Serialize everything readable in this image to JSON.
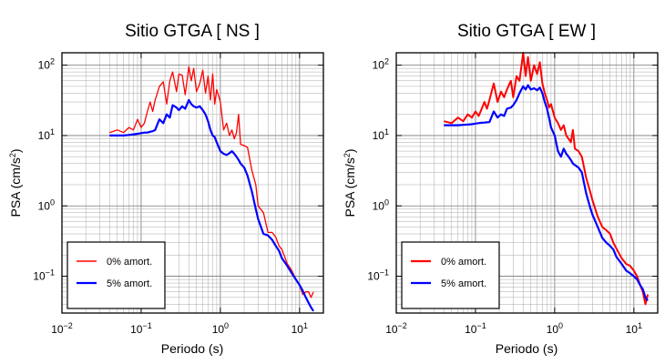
{
  "chart_data": [
    {
      "type": "line",
      "title": "Sitio GTGA [ NS ]",
      "xlabel": "Periodo (s)",
      "ylabel_main": "PSA (cm/s",
      "ylabel_sup": "2",
      "ylabel_tail": ")",
      "xscale": "log",
      "yscale": "log",
      "xlim": [
        0.01,
        20
      ],
      "ylim": [
        0.03,
        150
      ],
      "grid": true,
      "legend_placement": "bottom-left",
      "x_tick_labels": [
        {
          "value": 0.01,
          "base": "10",
          "exp": "−2"
        },
        {
          "value": 0.1,
          "base": "10",
          "exp": "−1"
        },
        {
          "value": 1,
          "base": "10",
          "exp": "0"
        },
        {
          "value": 10,
          "base": "10",
          "exp": "1"
        }
      ],
      "y_tick_labels": [
        {
          "value": 0.1,
          "base": "10",
          "exp": "−1"
        },
        {
          "value": 1,
          "base": "10",
          "exp": "0"
        },
        {
          "value": 10,
          "base": "10",
          "exp": "1"
        },
        {
          "value": 100,
          "base": "10",
          "exp": "2"
        }
      ],
      "series": [
        {
          "name": "0% amort.",
          "color": "#ff0000",
          "x": [
            0.04,
            0.05,
            0.06,
            0.07,
            0.08,
            0.09,
            0.1,
            0.11,
            0.12,
            0.13,
            0.14,
            0.15,
            0.17,
            0.19,
            0.21,
            0.23,
            0.25,
            0.28,
            0.3,
            0.33,
            0.36,
            0.4,
            0.43,
            0.46,
            0.5,
            0.55,
            0.6,
            0.65,
            0.7,
            0.75,
            0.8,
            0.85,
            0.9,
            1.0,
            1.1,
            1.2,
            1.3,
            1.4,
            1.5,
            1.6,
            1.7,
            1.8,
            2.0,
            2.2,
            2.5,
            2.8,
            3.0,
            3.5,
            4.0,
            4.5,
            5.0,
            5.5,
            6.0,
            7.0,
            8.0,
            9.0,
            10.0,
            11.0,
            12.0,
            13.0,
            14.0,
            15.0
          ],
          "y": [
            11,
            12,
            11,
            13,
            12,
            17,
            13,
            15,
            22,
            30,
            22,
            32,
            50,
            58,
            28,
            60,
            80,
            42,
            75,
            72,
            38,
            95,
            60,
            90,
            42,
            55,
            85,
            40,
            70,
            32,
            75,
            28,
            45,
            30,
            12,
            15,
            10,
            12,
            9,
            11,
            20,
            7.5,
            7.2,
            6.8,
            3.2,
            2.0,
            1.0,
            0.8,
            0.42,
            0.42,
            0.36,
            0.27,
            0.24,
            0.15,
            0.12,
            0.09,
            0.075,
            0.055,
            0.06,
            0.06,
            0.05,
            0.06
          ]
        },
        {
          "name": "5% amort.",
          "color": "#0000ff",
          "x": [
            0.04,
            0.05,
            0.06,
            0.07,
            0.08,
            0.09,
            0.1,
            0.11,
            0.12,
            0.13,
            0.14,
            0.15,
            0.17,
            0.19,
            0.21,
            0.23,
            0.25,
            0.28,
            0.3,
            0.33,
            0.36,
            0.4,
            0.43,
            0.46,
            0.5,
            0.55,
            0.6,
            0.65,
            0.7,
            0.75,
            0.8,
            0.85,
            0.9,
            1.0,
            1.1,
            1.2,
            1.3,
            1.4,
            1.5,
            1.6,
            1.7,
            1.8,
            2.0,
            2.2,
            2.5,
            2.8,
            3.0,
            3.5,
            4.0,
            4.5,
            5.0,
            5.5,
            6.0,
            7.0,
            8.0,
            9.0,
            10.0,
            11.0,
            12.0,
            13.0,
            14.0,
            15.0
          ],
          "y": [
            10,
            10,
            10,
            10.2,
            10.4,
            10.6,
            10.8,
            11,
            11,
            11.3,
            11.5,
            12,
            17,
            15,
            20,
            18,
            27,
            25,
            23,
            26,
            24,
            32,
            28,
            26,
            25,
            26,
            23,
            20,
            16,
            12,
            10,
            9.5,
            8,
            6,
            5.5,
            5.3,
            5.6,
            6,
            5.5,
            5,
            4.5,
            4,
            3.5,
            2.7,
            1.6,
            0.9,
            0.65,
            0.4,
            0.38,
            0.33,
            0.27,
            0.23,
            0.18,
            0.14,
            0.11,
            0.09,
            0.075,
            0.062,
            0.05,
            0.042,
            0.036,
            0.032
          ]
        }
      ]
    },
    {
      "type": "line",
      "title": "Sitio GTGA [ EW ]",
      "xlabel": "Periodo (s)",
      "ylabel_main": "PSA (cm/s",
      "ylabel_sup": "2",
      "ylabel_tail": ")",
      "xscale": "log",
      "yscale": "log",
      "xlim": [
        0.01,
        20
      ],
      "ylim": [
        0.03,
        150
      ],
      "grid": true,
      "legend_placement": "bottom-left",
      "x_tick_labels": [
        {
          "value": 0.01,
          "base": "10",
          "exp": "−2"
        },
        {
          "value": 0.1,
          "base": "10",
          "exp": "−1"
        },
        {
          "value": 1,
          "base": "10",
          "exp": "0"
        },
        {
          "value": 10,
          "base": "10",
          "exp": "1"
        }
      ],
      "y_tick_labels": [
        {
          "value": 0.1,
          "base": "10",
          "exp": "−1"
        },
        {
          "value": 1,
          "base": "10",
          "exp": "0"
        },
        {
          "value": 10,
          "base": "10",
          "exp": "1"
        },
        {
          "value": 100,
          "base": "10",
          "exp": "2"
        }
      ],
      "series": [
        {
          "name": "0% amort.",
          "color": "#ff0000",
          "x": [
            0.04,
            0.05,
            0.06,
            0.07,
            0.08,
            0.09,
            0.1,
            0.11,
            0.12,
            0.13,
            0.14,
            0.15,
            0.17,
            0.19,
            0.21,
            0.23,
            0.25,
            0.28,
            0.3,
            0.33,
            0.36,
            0.4,
            0.43,
            0.46,
            0.5,
            0.55,
            0.6,
            0.65,
            0.7,
            0.75,
            0.8,
            0.85,
            0.9,
            1.0,
            1.1,
            1.2,
            1.3,
            1.4,
            1.5,
            1.6,
            1.7,
            1.8,
            2.0,
            2.2,
            2.5,
            2.8,
            3.0,
            3.5,
            4.0,
            4.5,
            5.0,
            5.5,
            6.0,
            7.0,
            8.0,
            9.0,
            10.0,
            11.0,
            12.0,
            13.0,
            14.0,
            15.0
          ],
          "y": [
            16,
            15,
            18,
            16,
            20,
            18,
            22,
            19,
            24,
            30,
            24,
            32,
            55,
            30,
            42,
            35,
            45,
            60,
            35,
            70,
            60,
            150,
            70,
            130,
            60,
            100,
            75,
            110,
            55,
            40,
            32,
            25,
            28,
            18,
            15,
            12,
            14,
            10,
            9,
            8,
            12,
            6.5,
            6,
            5,
            2.5,
            1.6,
            1.2,
            0.7,
            0.5,
            0.45,
            0.4,
            0.3,
            0.25,
            0.18,
            0.15,
            0.14,
            0.12,
            0.1,
            0.075,
            0.06,
            0.04,
            0.055
          ]
        },
        {
          "name": "5% amort.",
          "color": "#0000ff",
          "x": [
            0.04,
            0.05,
            0.06,
            0.07,
            0.08,
            0.09,
            0.1,
            0.11,
            0.12,
            0.13,
            0.14,
            0.15,
            0.17,
            0.19,
            0.21,
            0.23,
            0.25,
            0.28,
            0.3,
            0.33,
            0.36,
            0.4,
            0.43,
            0.46,
            0.5,
            0.55,
            0.6,
            0.65,
            0.7,
            0.75,
            0.8,
            0.85,
            0.9,
            1.0,
            1.1,
            1.2,
            1.3,
            1.4,
            1.5,
            1.6,
            1.7,
            1.8,
            2.0,
            2.2,
            2.5,
            2.8,
            3.0,
            3.5,
            4.0,
            4.5,
            5.0,
            5.5,
            6.0,
            7.0,
            8.0,
            9.0,
            10.0,
            11.0,
            12.0,
            13.0,
            14.0,
            15.0
          ],
          "y": [
            14,
            14,
            14,
            14.2,
            14.3,
            14.5,
            14.8,
            15,
            15.2,
            15.3,
            15.4,
            15.5,
            22,
            18,
            20,
            19,
            24,
            25,
            27,
            32,
            40,
            50,
            45,
            52,
            45,
            47,
            44,
            48,
            40,
            30,
            24,
            18,
            13,
            10,
            6,
            5,
            6.5,
            5.5,
            5,
            4.5,
            4,
            3.8,
            3.5,
            3,
            1.5,
            0.95,
            0.75,
            0.5,
            0.35,
            0.3,
            0.27,
            0.24,
            0.19,
            0.15,
            0.12,
            0.11,
            0.1,
            0.09,
            0.075,
            0.065,
            0.05,
            0.045
          ]
        }
      ]
    }
  ]
}
